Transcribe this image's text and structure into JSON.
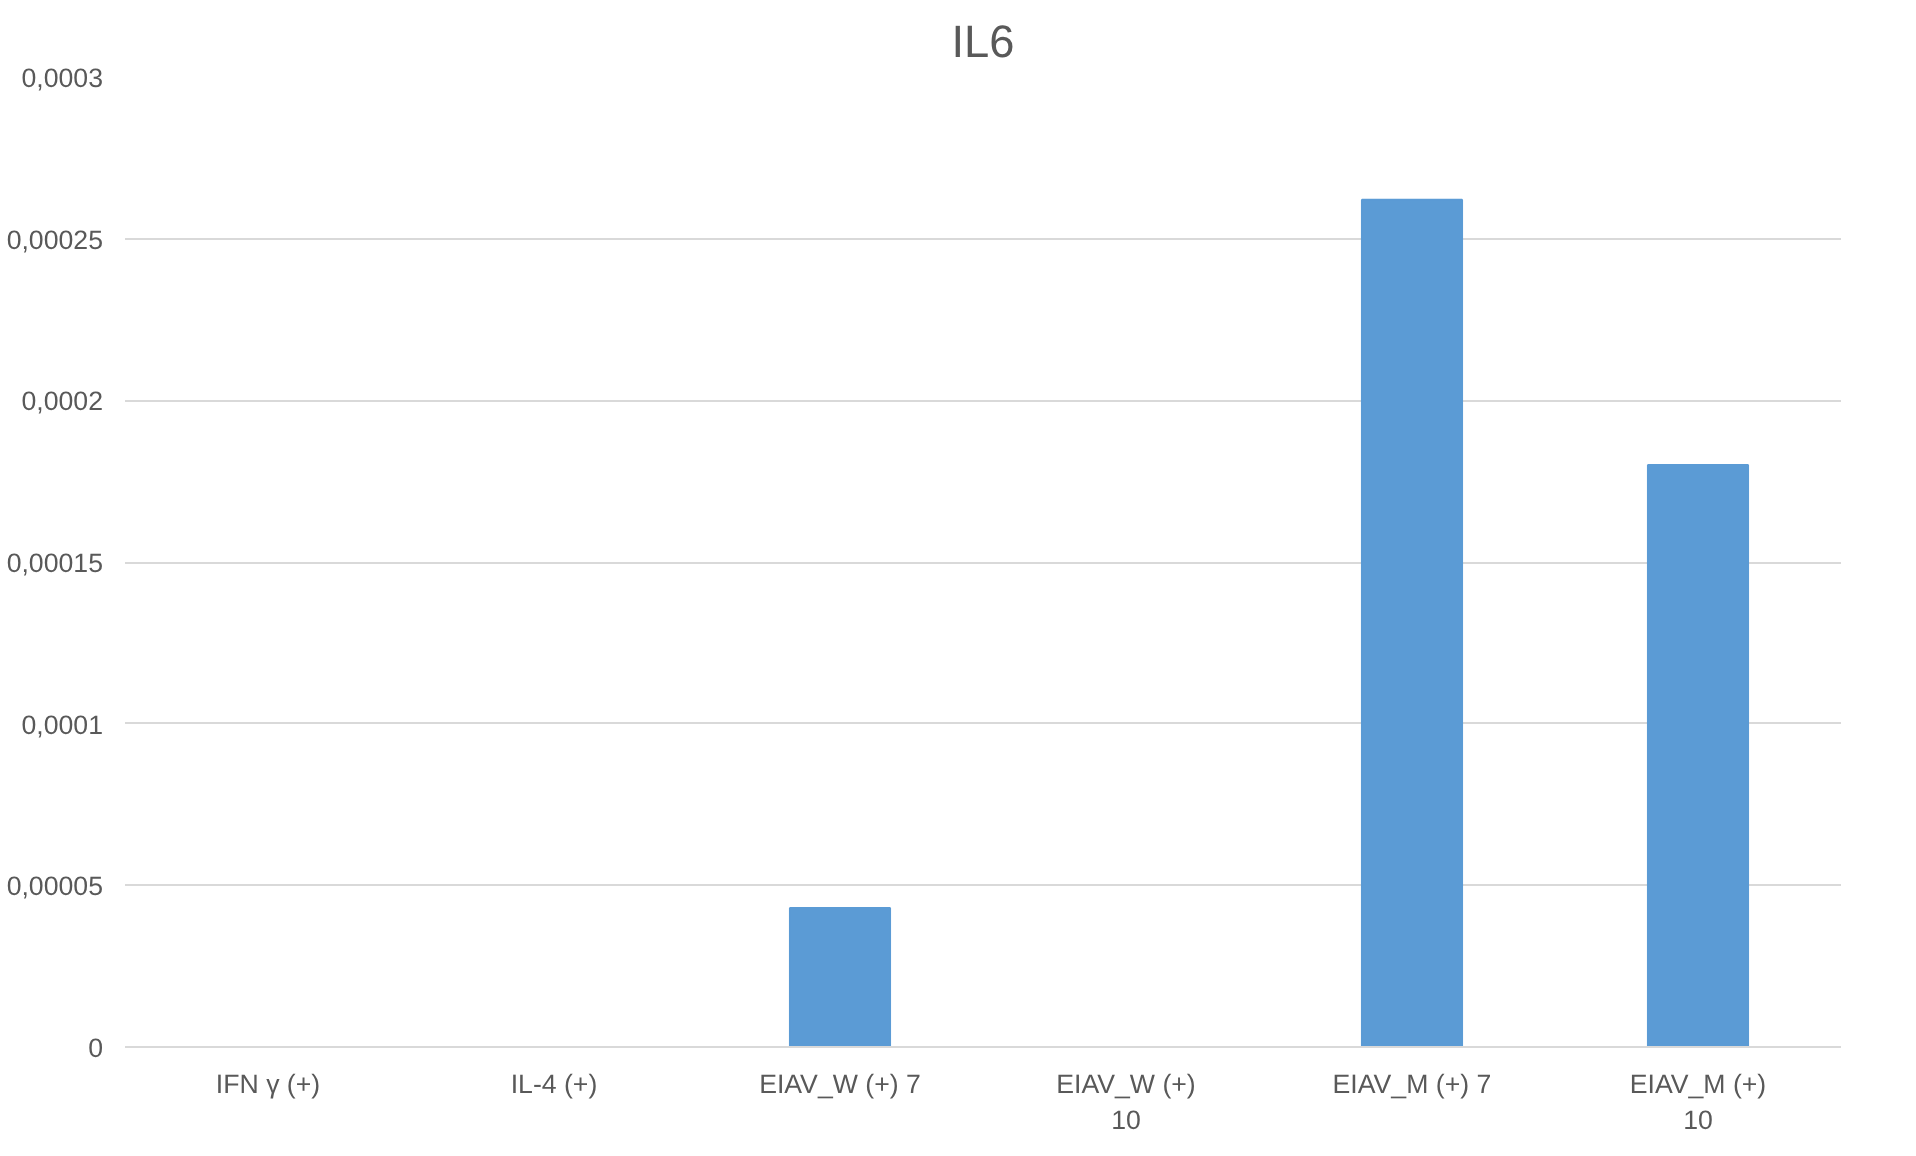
{
  "chart_data": {
    "type": "bar",
    "title": "IL6",
    "categories": [
      "IFN γ (+)",
      "IL-4 (+)",
      "EIAV_W (+) 7",
      "EIAV_W (+) 10",
      "EIAV_M (+) 7",
      "EIAV_M (+) 10"
    ],
    "values": [
      0,
      0,
      4.3e-05,
      0,
      0.000262,
      0.00018
    ],
    "color": "#5b9bd5",
    "ylim": [
      0,
      0.0003
    ],
    "yticks": [
      {
        "value": 0,
        "label": "0"
      },
      {
        "value": 5e-05,
        "label": "0,00005"
      },
      {
        "value": 0.0001,
        "label": "0,0001"
      },
      {
        "value": 0.00015,
        "label": "0,00015"
      },
      {
        "value": 0.0002,
        "label": "0,0002"
      },
      {
        "value": 0.00025,
        "label": "0,00025"
      },
      {
        "value": 0.0003,
        "label": "0,0003"
      }
    ],
    "grid": "y"
  }
}
